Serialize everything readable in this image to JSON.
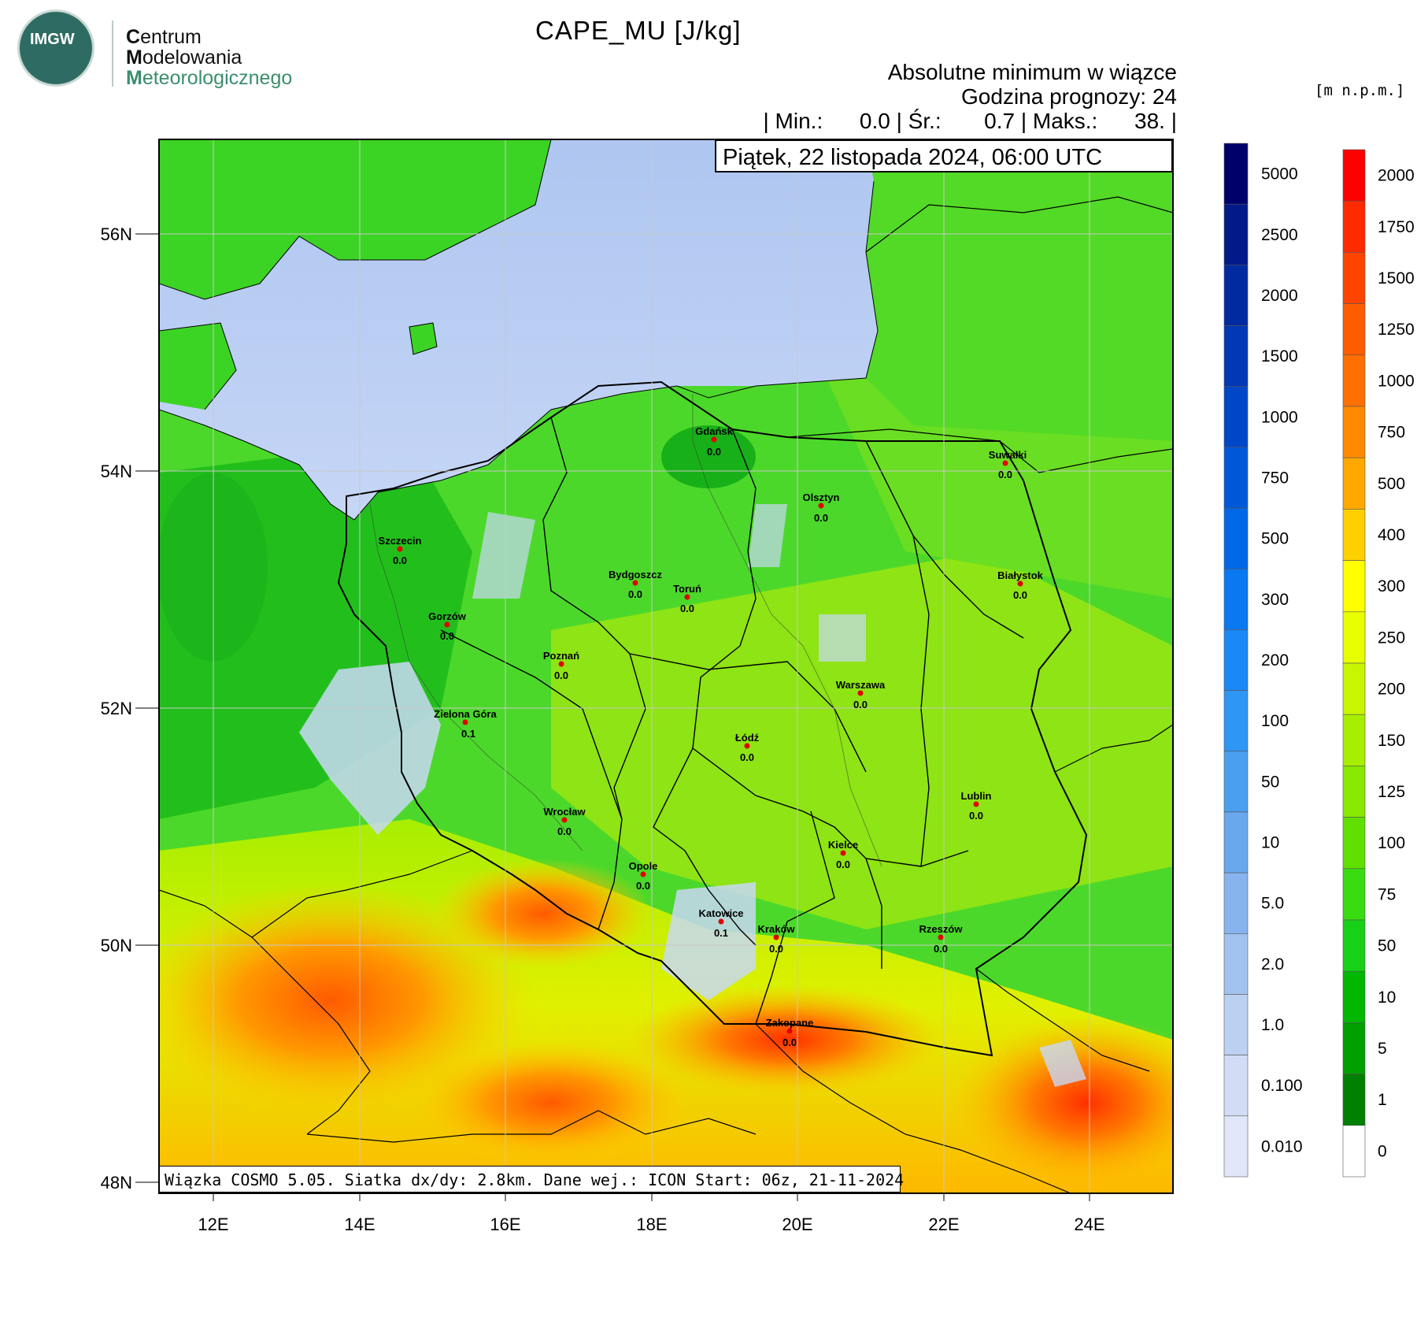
{
  "logo": {
    "emblem_text": "IMGW",
    "lines": [
      {
        "first": "C",
        "rest": "entrum"
      },
      {
        "first": "M",
        "rest": "odelowania"
      },
      {
        "first": "M",
        "rest": "eteorologicznego"
      }
    ]
  },
  "title": "CAPE_MU [J/kg]",
  "subtitle_lines": [
    "Absolutne minimum w wiązce",
    "Godzina prognozy: 24",
    "| Min.:      0.0 | Śr.:       0.7 | Maks.:      38. |"
  ],
  "date_label": "Piątek, 22 listopada 2024, 06:00 UTC",
  "footer": "Wiązka COSMO 5.05. Siatka dx/dy: 2.8km. Dane wej.: ICON Start: 06z, 21-11-2024",
  "elevation_unit": "[m n.p.m.]",
  "axes": {
    "lon_ticks": [
      "12E",
      "14E",
      "16E",
      "18E",
      "20E",
      "22E",
      "24E"
    ],
    "lat_ticks": [
      "56N",
      "54N",
      "52N",
      "50N",
      "48N"
    ]
  },
  "cape_colorbar": {
    "labels": [
      "5000",
      "2500",
      "2000",
      "1500",
      "1000",
      "750",
      "500",
      "300",
      "200",
      "100",
      "50",
      "10",
      "5.0",
      "2.0",
      "1.0",
      "0.100",
      "0.010"
    ],
    "colors": [
      "#00006a",
      "#001a8a",
      "#002aa0",
      "#0038b6",
      "#0047c8",
      "#0058d8",
      "#0068e6",
      "#0a78f0",
      "#1a88f6",
      "#2e96f4",
      "#4a9ff0",
      "#6aa8ee",
      "#88b4ee",
      "#a2c2f0",
      "#bcd0f2",
      "#d2dcf5",
      "#e1e7f8"
    ]
  },
  "elev_colorbar": {
    "labels": [
      "2000",
      "1750",
      "1500",
      "1250",
      "1000",
      "750",
      "500",
      "400",
      "300",
      "250",
      "200",
      "150",
      "125",
      "100",
      "75",
      "50",
      "10",
      "5",
      "1",
      "0"
    ],
    "colors": [
      "#ff0000",
      "#ff2a00",
      "#ff4400",
      "#ff5c00",
      "#ff7000",
      "#ff8a00",
      "#ffa800",
      "#ffd000",
      "#ffff00",
      "#e8ff00",
      "#c8f500",
      "#a8ee00",
      "#88e800",
      "#60e000",
      "#38dc10",
      "#18d018",
      "#00b800",
      "#00a000",
      "#008000",
      "#ffffff"
    ]
  },
  "cities": [
    {
      "name": "Gdańsk",
      "value": "0.0"
    },
    {
      "name": "Suwałki",
      "value": "0.0"
    },
    {
      "name": "Olsztyn",
      "value": "0.0"
    },
    {
      "name": "Szczecin",
      "value": "0.0"
    },
    {
      "name": "Bydgoszcz",
      "value": "0.0"
    },
    {
      "name": "Toruń",
      "value": "0.0"
    },
    {
      "name": "Białystok",
      "value": "0.0"
    },
    {
      "name": "Gorzów",
      "value": "0.0"
    },
    {
      "name": "Poznań",
      "value": "0.0"
    },
    {
      "name": "Warszawa",
      "value": "0.0"
    },
    {
      "name": "Zielona Góra",
      "value": "0.1"
    },
    {
      "name": "Łódź",
      "value": "0.0"
    },
    {
      "name": "Lublin",
      "value": "0.0"
    },
    {
      "name": "Wrocław",
      "value": "0.0"
    },
    {
      "name": "Kielce",
      "value": "0.0"
    },
    {
      "name": "Opole",
      "value": "0.0"
    },
    {
      "name": "Katowice",
      "value": "0.1"
    },
    {
      "name": "Kraków",
      "value": "0.0"
    },
    {
      "name": "Rzeszów",
      "value": "0.0"
    },
    {
      "name": "Zakopane",
      "value": "0.0"
    }
  ]
}
